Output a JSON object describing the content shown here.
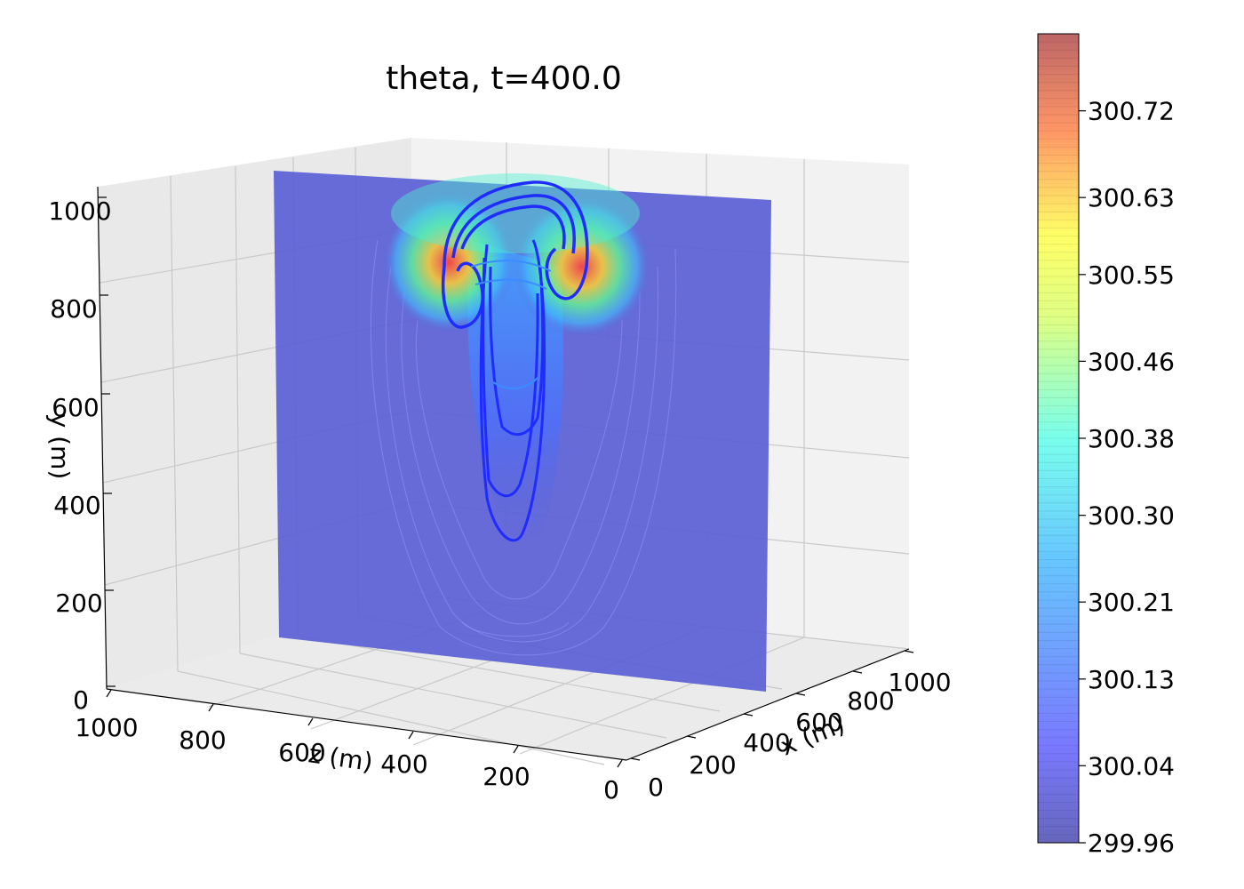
{
  "chart_data": {
    "type": "heatmap",
    "title": "theta, t=400.0",
    "variable": "theta",
    "time": 400.0,
    "projection": "3d",
    "grid": true,
    "colormap": "jet",
    "axes": {
      "x": {
        "label": "x (m)",
        "ticks": [
          0,
          200,
          400,
          600,
          800,
          1000
        ],
        "range": [
          0,
          1000
        ]
      },
      "y": {
        "label": "y (m)",
        "ticks": [
          0,
          200,
          400,
          600,
          800,
          1000
        ],
        "range": [
          0,
          1000
        ]
      },
      "z": {
        "label": "z (m)",
        "ticks": [
          1000,
          800,
          600,
          400,
          200,
          0
        ],
        "range": [
          0,
          1000
        ]
      }
    },
    "colorbar": {
      "placement": "right",
      "min": 299.96,
      "max": 300.8,
      "ticks": [
        300.72,
        300.63,
        300.55,
        300.46,
        300.38,
        300.3,
        300.21,
        300.13,
        300.04,
        299.96
      ],
      "tick_labels": [
        "300.72",
        "300.63",
        "300.55",
        "300.46",
        "300.38",
        "300.30",
        "300.21",
        "300.13",
        "300.04",
        "299.96"
      ]
    },
    "field_description": "rising warm thermal plume with mushroom-shaped cap near y≈850 m; stem extends down to y≈300 m",
    "colors": {
      "background_field": "#5a5fd6",
      "plume_core": "#1f2bff",
      "pane": "#f3f3f3",
      "grid": "#c8c8c8"
    }
  }
}
